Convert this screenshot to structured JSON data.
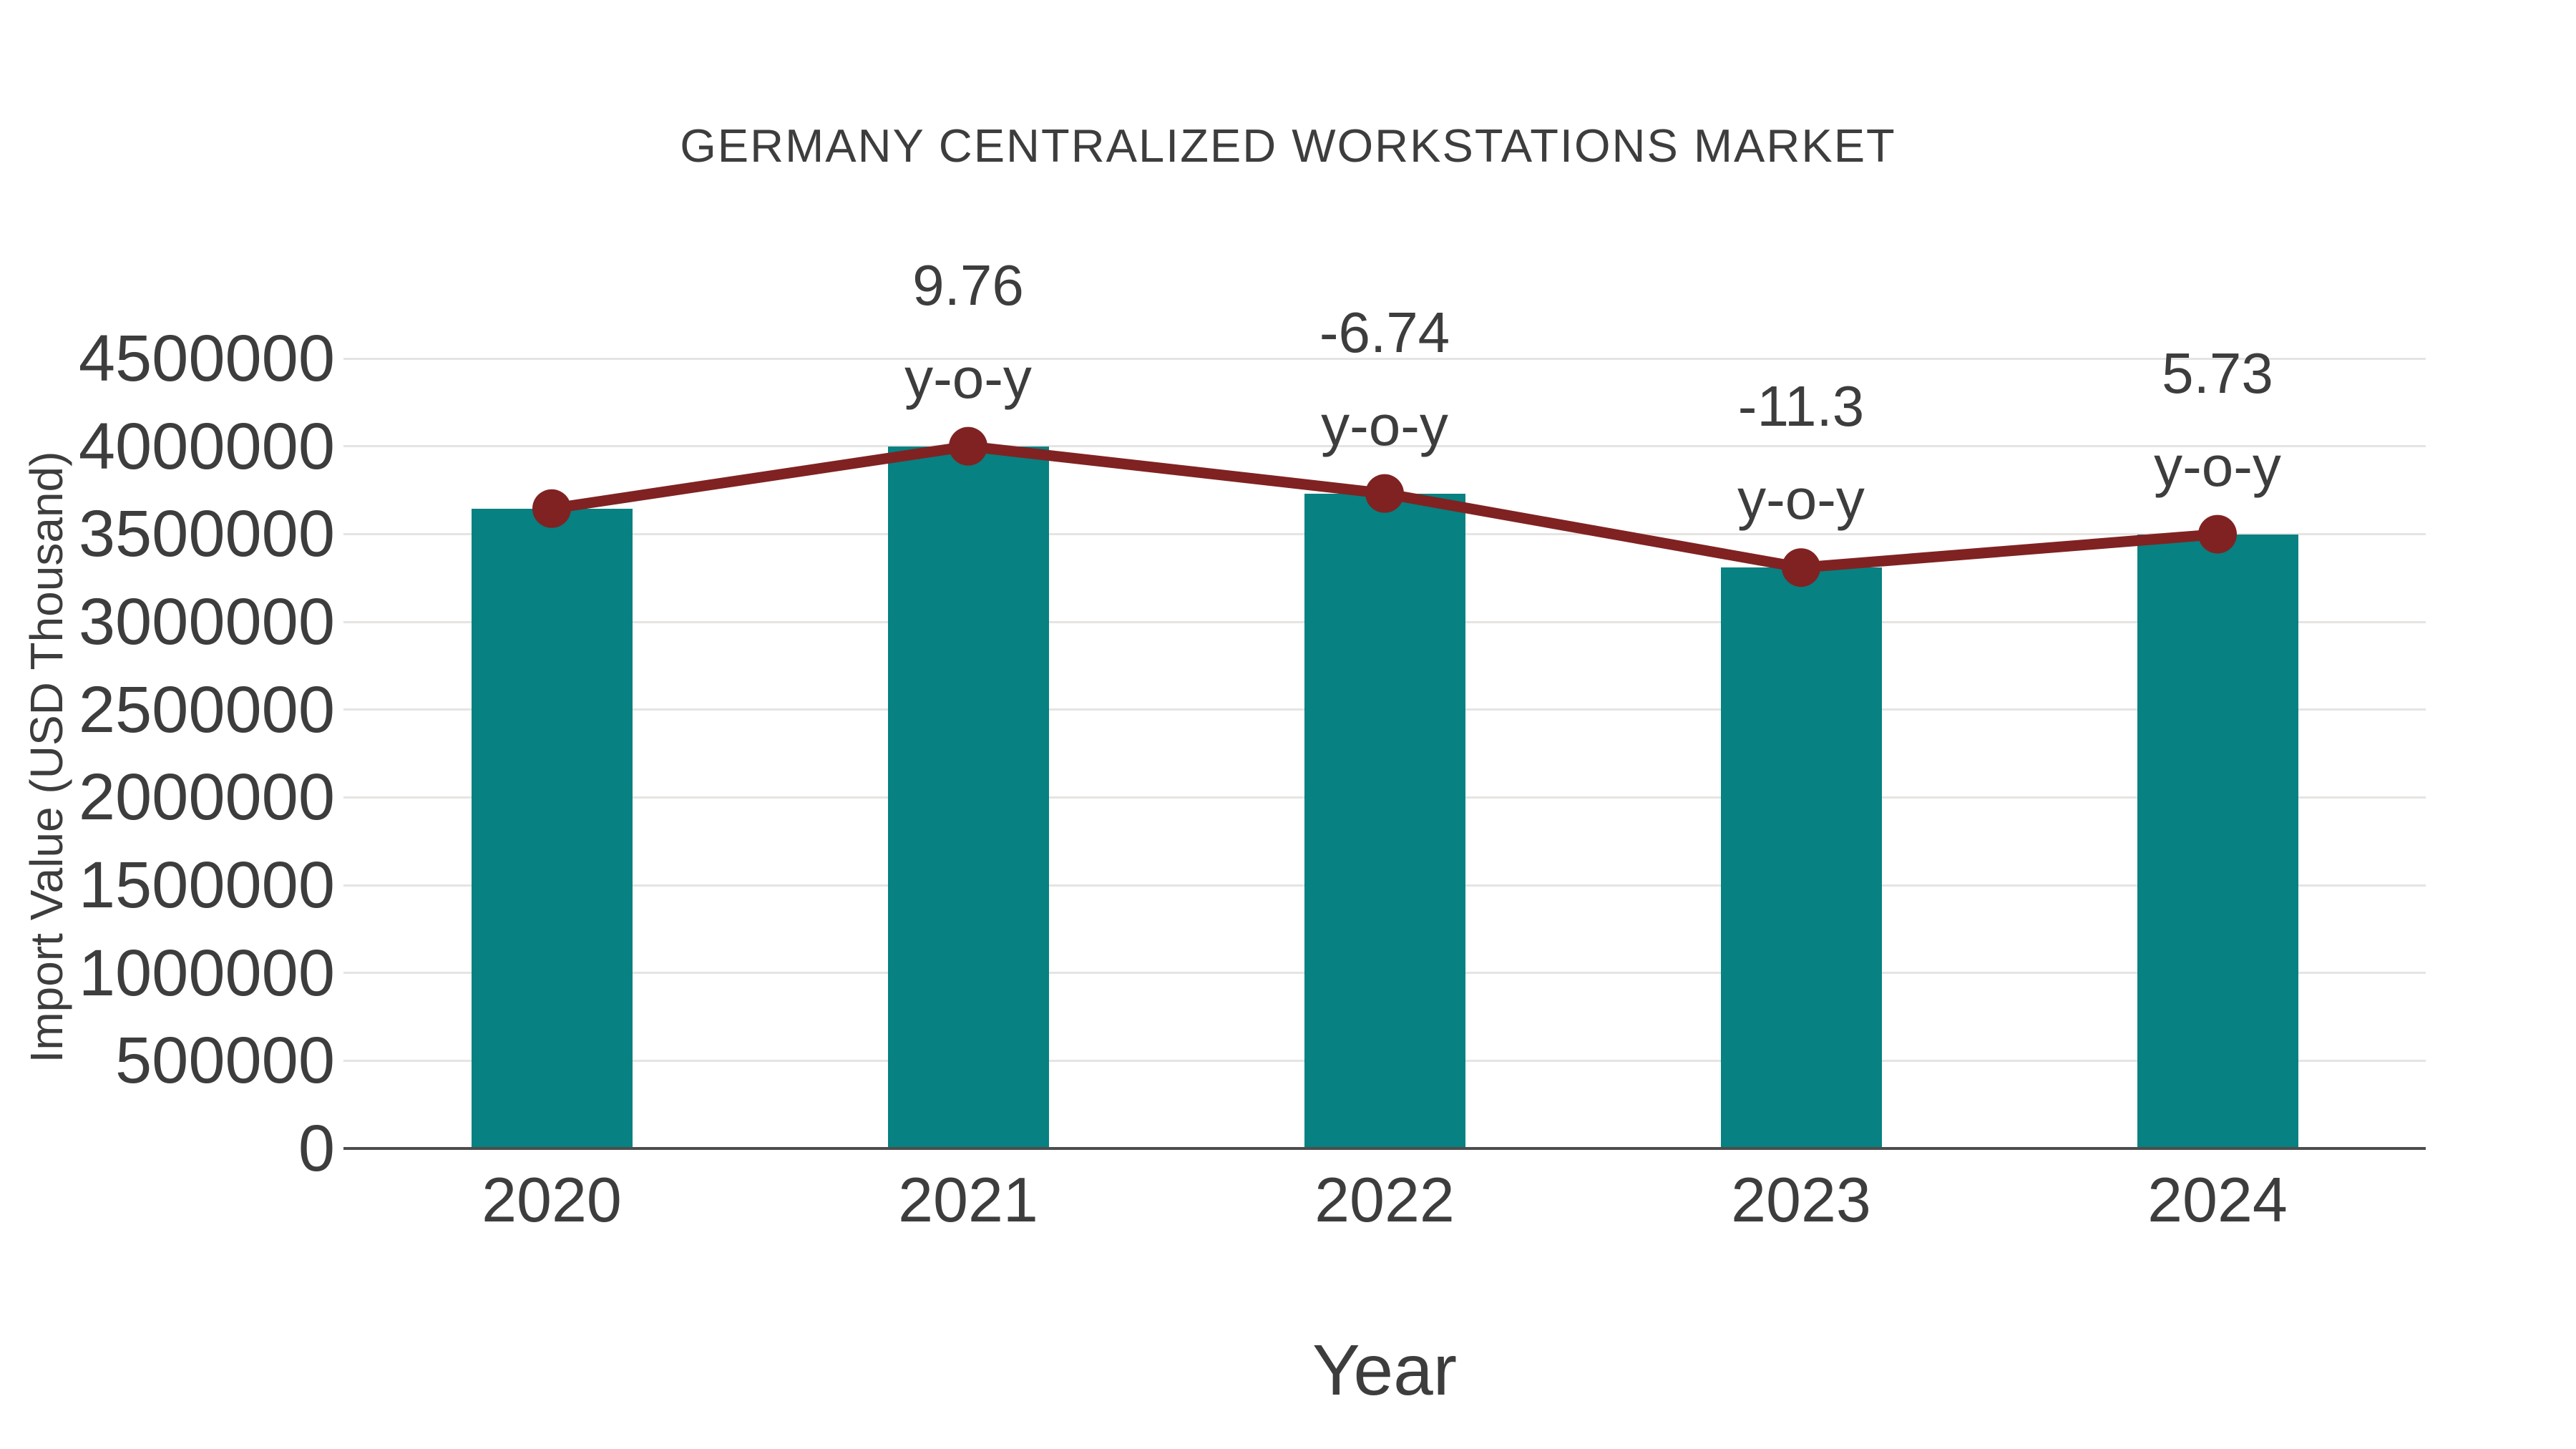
{
  "title": "GERMANY CENTRALIZED WORKSTATIONS MARKET",
  "axes": {
    "x_label": "Year",
    "y_label": "Import Value (USD Thousand)"
  },
  "colors": {
    "bar": "#078181",
    "line": "#802222",
    "text": "#3d3d3d",
    "gridline": "#e6e4e2",
    "axis_line": "#4d4d4d",
    "background": "#ffffff"
  },
  "chart_data": {
    "type": "bar",
    "title": "GERMANY CENTRALIZED WORKSTATIONS MARKET",
    "xlabel": "Year",
    "ylabel": "Import Value (USD Thousand)",
    "categories": [
      "2020",
      "2021",
      "2022",
      "2023",
      "2024"
    ],
    "series": [
      {
        "name": "Import Value (USD Thousand)",
        "type": "bar",
        "color": "#078181",
        "values": [
          3645000,
          4000000,
          3731000,
          3309000,
          3499000
        ]
      },
      {
        "name": "y-o-y trend line",
        "type": "line",
        "color": "#802222",
        "values": [
          3645000,
          4000000,
          3731000,
          3309000,
          3499000
        ],
        "yoy_percent": [
          null,
          9.76,
          -6.74,
          -11.3,
          5.73
        ]
      }
    ],
    "annotations": [
      {
        "category": "2021",
        "lines": [
          "9.76",
          "y-o-y"
        ]
      },
      {
        "category": "2022",
        "lines": [
          "-6.74",
          "y-o-y"
        ]
      },
      {
        "category": "2023",
        "lines": [
          "-11.3",
          "y-o-y"
        ]
      },
      {
        "category": "2024",
        "lines": [
          "5.73",
          "y-o-y"
        ]
      }
    ],
    "ylim": [
      0,
      4500000
    ],
    "ytick_step": 500000,
    "ytick_labels": [
      "0",
      "500000",
      "1000000",
      "1500000",
      "2000000",
      "2500000",
      "3000000",
      "3500000",
      "4000000",
      "4500000"
    ],
    "grid": "horizontal",
    "legend": "none"
  }
}
